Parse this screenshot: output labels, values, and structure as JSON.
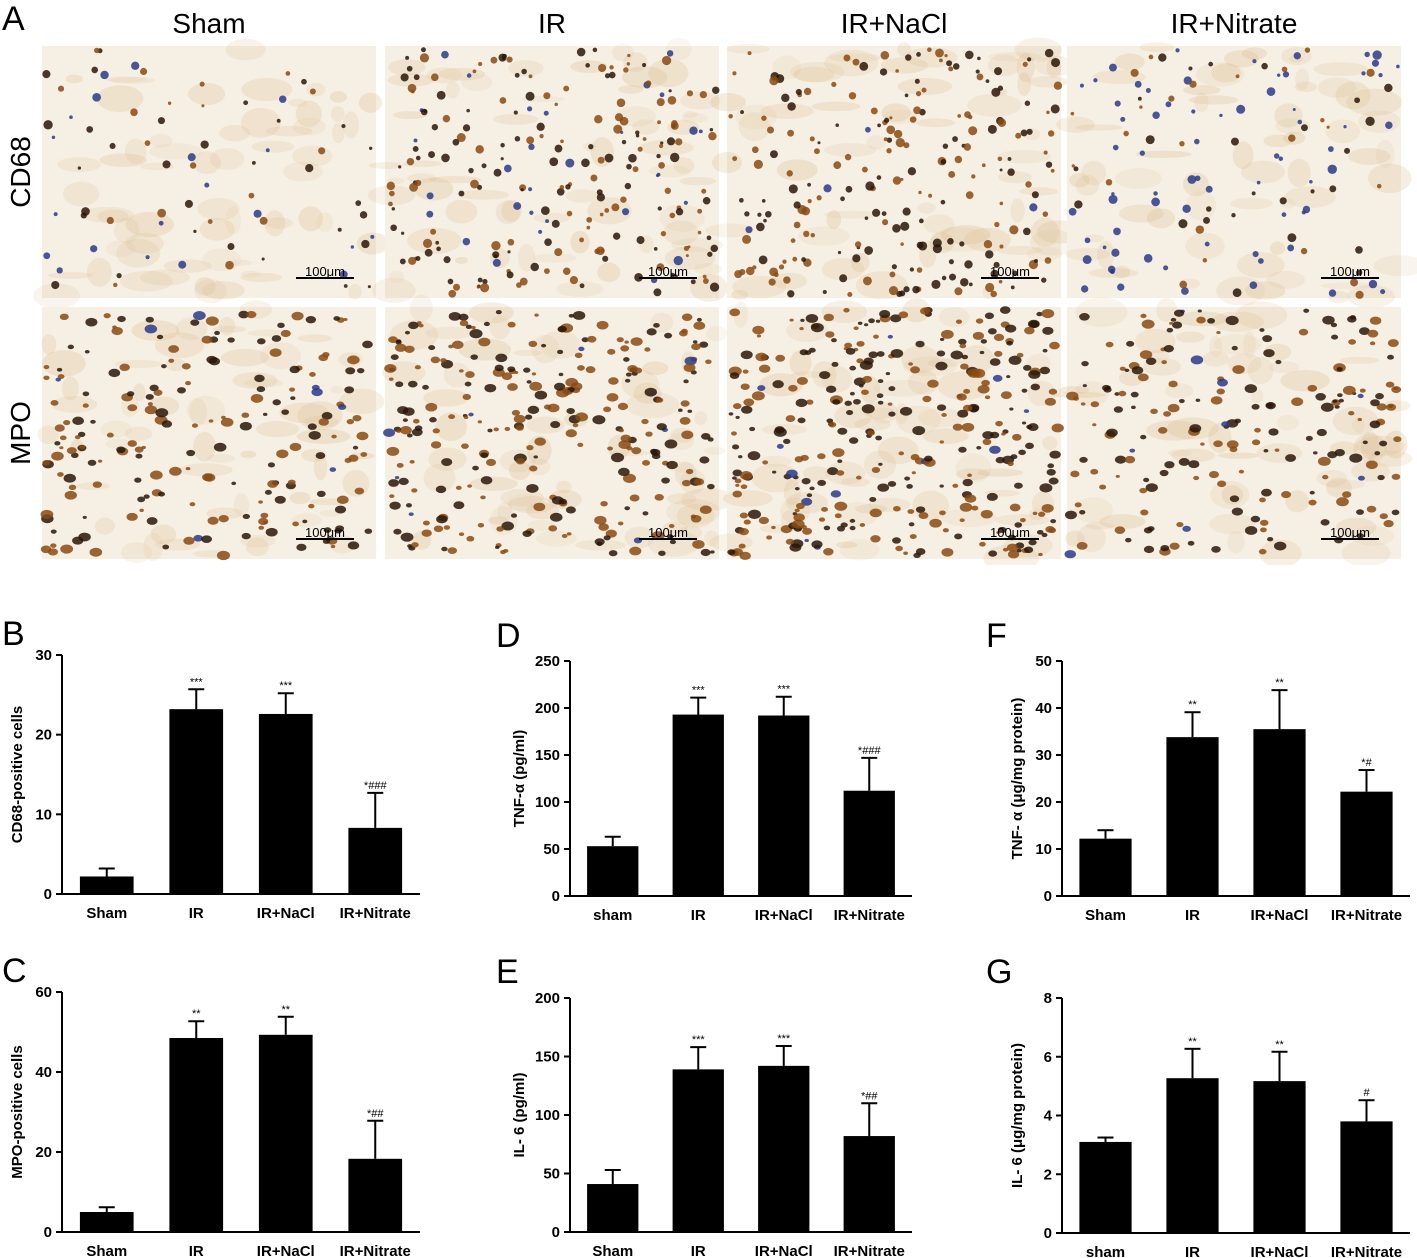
{
  "panel_a": {
    "letter": "A",
    "columns": [
      "Sham",
      "IR",
      "IR+NaCl",
      "IR+Nitrate"
    ],
    "rows": [
      "CD68",
      "MPO"
    ],
    "scale_bar": "100μm",
    "stain_colors": {
      "background": "#f6efe3",
      "brown": "#8a4a12",
      "dark": "#2a1608",
      "blue": "#2a3a8a"
    }
  },
  "chart_data": [
    {
      "panel": "B",
      "type": "bar",
      "categories": [
        "Sham",
        "IR",
        "IR+NaCl",
        "IR+Nitrate"
      ],
      "values": [
        2.2,
        23.2,
        22.6,
        8.3
      ],
      "errors": [
        1.0,
        2.5,
        2.6,
        4.4
      ],
      "annotations": [
        "",
        "***",
        "***",
        "*###"
      ],
      "ylabel": "CD68-positive cells",
      "ylim": [
        0,
        30
      ],
      "yticks": [
        0,
        10,
        20,
        30
      ]
    },
    {
      "panel": "C",
      "type": "bar",
      "categories": [
        "Sham",
        "IR",
        "IR+NaCl",
        "IR+Nitrate"
      ],
      "values": [
        5,
        48.5,
        49.3,
        18.3
      ],
      "errors": [
        1.2,
        4.2,
        4.5,
        9.5
      ],
      "annotations": [
        "",
        "**",
        "**",
        "*##"
      ],
      "ylabel": "MPO-positive cells",
      "ylim": [
        0,
        60
      ],
      "yticks": [
        0,
        20,
        40,
        60
      ]
    },
    {
      "panel": "D",
      "type": "bar",
      "categories": [
        "sham",
        "IR",
        "IR+NaCl",
        "IR+Nitrate"
      ],
      "values": [
        53,
        193,
        192,
        112
      ],
      "errors": [
        10,
        18,
        20,
        35
      ],
      "annotations": [
        "",
        "***",
        "***",
        "*###"
      ],
      "ylabel": "TNF-α (pg/ml)",
      "ylim": [
        0,
        250
      ],
      "yticks": [
        0,
        50,
        100,
        150,
        200,
        250
      ]
    },
    {
      "panel": "E",
      "type": "bar",
      "categories": [
        "Sham",
        "IR",
        "IR+NaCl",
        "IR+Nitrate"
      ],
      "values": [
        41,
        139,
        142,
        82
      ],
      "errors": [
        12,
        19,
        17,
        28
      ],
      "annotations": [
        "",
        "***",
        "***",
        "*##"
      ],
      "ylabel": "IL- 6 (pg/ml)",
      "ylim": [
        0,
        200
      ],
      "yticks": [
        0,
        50,
        100,
        150,
        200
      ]
    },
    {
      "panel": "F",
      "type": "bar",
      "categories": [
        "Sham",
        "IR",
        "IR+NaCl",
        "IR+Nitrate"
      ],
      "values": [
        12.2,
        33.8,
        35.5,
        22.2
      ],
      "errors": [
        1.8,
        5.3,
        8.3,
        4.6
      ],
      "annotations": [
        "",
        "**",
        "**",
        "*#"
      ],
      "ylabel": "TNF- α (μg/mg protein)",
      "ylim": [
        0,
        50
      ],
      "yticks": [
        0,
        10,
        20,
        30,
        40,
        50
      ]
    },
    {
      "panel": "G",
      "type": "bar",
      "categories": [
        "sham",
        "IR",
        "IR+NaCl",
        "IR+Nitrate"
      ],
      "values": [
        3.1,
        5.27,
        5.17,
        3.8
      ],
      "errors": [
        0.15,
        1.0,
        1.0,
        0.72
      ],
      "annotations": [
        "",
        "**",
        "**",
        "#"
      ],
      "ylabel": "IL- 6 (μg/mg protein)",
      "ylim": [
        0,
        8
      ],
      "yticks": [
        0,
        2,
        4,
        6,
        8
      ]
    }
  ]
}
